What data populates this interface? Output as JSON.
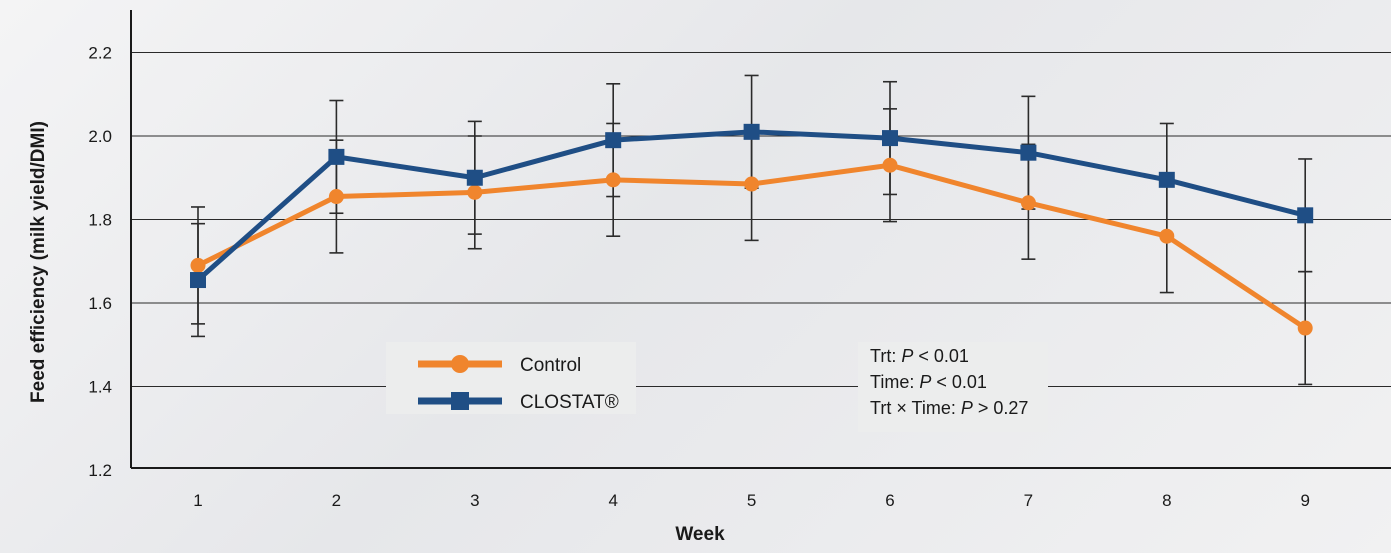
{
  "chart_data": {
    "type": "line",
    "xlabel": "Week",
    "ylabel": "Feed efficiency (milk yield/DMI)",
    "x": [
      1,
      2,
      3,
      4,
      5,
      6,
      7,
      8,
      9
    ],
    "x_tick_labels": [
      "1",
      "2",
      "3",
      "4",
      "5",
      "6",
      "7",
      "8",
      "9"
    ],
    "ylim": [
      1.2,
      2.3
    ],
    "y_ticks": [
      1.2,
      1.4,
      1.6,
      1.8,
      2.0,
      2.2
    ],
    "y_tick_labels": [
      "1.2",
      "1.4",
      "1.6",
      "1.8",
      "2.0",
      "2.2"
    ],
    "grid": "horizontal",
    "legend_position": "bottom-left",
    "series": [
      {
        "name": "Control",
        "color": "#f0852d",
        "marker": "circle",
        "values": [
          1.69,
          1.855,
          1.865,
          1.895,
          1.885,
          1.93,
          1.84,
          1.76,
          1.54
        ],
        "error_high": [
          1.83,
          1.99,
          2.0,
          2.03,
          2.0,
          2.065,
          1.98,
          1.895,
          1.675
        ],
        "error_low": [
          1.55,
          1.72,
          1.73,
          1.76,
          1.75,
          1.795,
          1.705,
          1.625,
          1.405
        ]
      },
      {
        "name": "CLOSTAT®",
        "color": "#1f4e85",
        "marker": "square",
        "values": [
          1.655,
          1.95,
          1.9,
          1.99,
          2.01,
          1.995,
          1.96,
          1.895,
          1.81
        ],
        "error_high": [
          1.79,
          2.085,
          2.035,
          2.125,
          2.145,
          2.13,
          2.095,
          2.03,
          1.945
        ],
        "error_low": [
          1.52,
          1.815,
          1.765,
          1.855,
          1.875,
          1.86,
          1.825,
          1.76,
          1.675
        ]
      }
    ],
    "annotations": [
      {
        "label": "Trt: ",
        "p": "P",
        "rest": " < 0.01"
      },
      {
        "label": "Time: ",
        "p": "P",
        "rest": "  < 0.01"
      },
      {
        "label": "Trt × Time: ",
        "p": "P",
        "rest": "  > 0.27"
      }
    ]
  }
}
